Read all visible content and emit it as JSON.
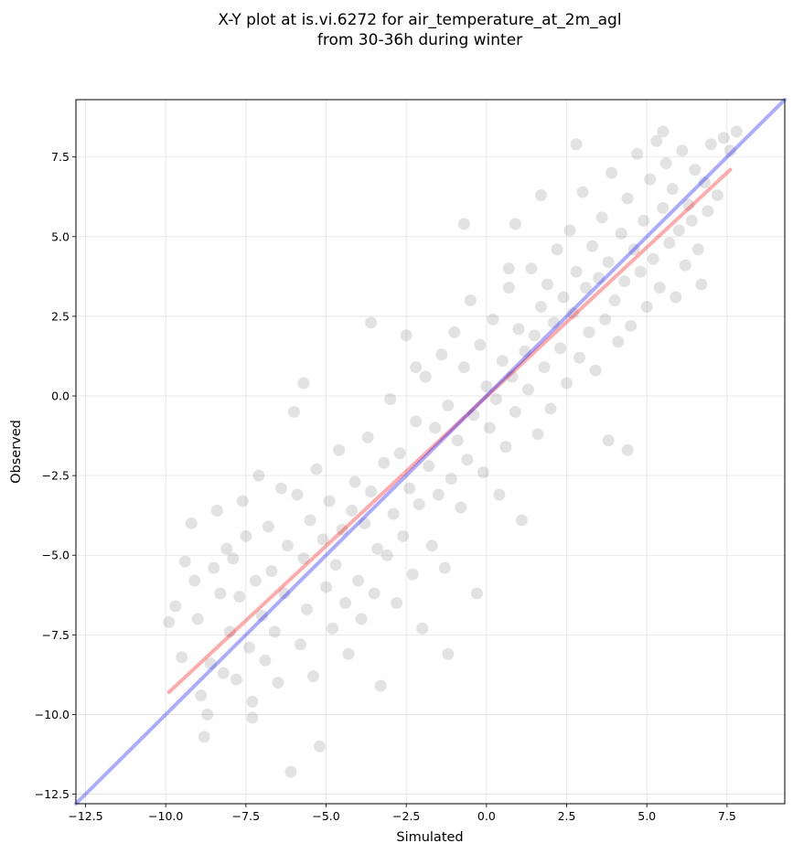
{
  "chart_data": {
    "type": "scatter",
    "title": "X-Y plot at is.vi.6272 for air_temperature_at_2m_agl",
    "subtitle": "from 30-36h during winter",
    "xlabel": "Simulated",
    "ylabel": "Observed",
    "xlim": [
      -12.8,
      9.3
    ],
    "ylim": [
      -12.8,
      9.3
    ],
    "xticks": [
      -12.5,
      -10.0,
      -7.5,
      -5.0,
      -2.5,
      0.0,
      2.5,
      5.0,
      7.5
    ],
    "yticks": [
      -12.5,
      -10.0,
      -7.5,
      -5.0,
      -2.5,
      0.0,
      2.5,
      5.0,
      7.5
    ],
    "xtick_labels": [
      "−12.5",
      "−10.0",
      "−7.5",
      "−5.0",
      "−2.5",
      "0.0",
      "2.5",
      "5.0",
      "7.5"
    ],
    "ytick_labels": [
      "−12.5",
      "−10.0",
      "−7.5",
      "−5.0",
      "−2.5",
      "0.0",
      "2.5",
      "5.0",
      "7.5"
    ],
    "grid": true,
    "legend": "none",
    "point_color": "#000000",
    "point_alpha": 0.07,
    "points": [
      [
        -9.9,
        -7.1
      ],
      [
        -9.7,
        -6.6
      ],
      [
        -9.5,
        -8.2
      ],
      [
        -9.4,
        -5.2
      ],
      [
        -9.2,
        -4.0
      ],
      [
        -9.1,
        -5.8
      ],
      [
        -9.0,
        -7.0
      ],
      [
        -8.9,
        -9.4
      ],
      [
        -8.8,
        -10.7
      ],
      [
        -8.7,
        -10.0
      ],
      [
        -8.6,
        -8.4
      ],
      [
        -8.5,
        -5.4
      ],
      [
        -8.4,
        -3.6
      ],
      [
        -8.3,
        -6.2
      ],
      [
        -8.2,
        -8.7
      ],
      [
        -8.1,
        -4.8
      ],
      [
        -8.0,
        -7.4
      ],
      [
        -7.9,
        -5.1
      ],
      [
        -7.8,
        -8.9
      ],
      [
        -7.7,
        -6.3
      ],
      [
        -7.6,
        -3.3
      ],
      [
        -7.5,
        -4.4
      ],
      [
        -7.4,
        -7.9
      ],
      [
        -7.3,
        -9.6
      ],
      [
        -7.2,
        -5.8
      ],
      [
        -7.1,
        -2.5
      ],
      [
        -7.0,
        -6.9
      ],
      [
        -6.9,
        -8.3
      ],
      [
        -6.8,
        -4.1
      ],
      [
        -6.7,
        -5.5
      ],
      [
        -6.6,
        -7.4
      ],
      [
        -6.5,
        -9.0
      ],
      [
        -6.4,
        -2.9
      ],
      [
        -6.3,
        -6.2
      ],
      [
        -6.2,
        -4.7
      ],
      [
        -6.1,
        -11.8
      ],
      [
        -6.0,
        -0.5
      ],
      [
        -5.9,
        -3.1
      ],
      [
        -5.8,
        -7.8
      ],
      [
        -5.7,
        -5.1
      ],
      [
        -5.6,
        -6.7
      ],
      [
        -5.5,
        -3.9
      ],
      [
        -5.4,
        -8.8
      ],
      [
        -5.3,
        -2.3
      ],
      [
        -5.2,
        -11.0
      ],
      [
        -5.1,
        -4.5
      ],
      [
        -5.0,
        -6.0
      ],
      [
        -4.9,
        -3.3
      ],
      [
        -4.8,
        -7.3
      ],
      [
        -4.7,
        -5.3
      ],
      [
        -4.6,
        -1.7
      ],
      [
        -4.5,
        -4.2
      ],
      [
        -4.4,
        -6.5
      ],
      [
        -4.3,
        -8.1
      ],
      [
        -4.2,
        -3.6
      ],
      [
        -4.1,
        -2.7
      ],
      [
        -4.0,
        -5.8
      ],
      [
        -3.9,
        -7.0
      ],
      [
        -3.8,
        -4.0
      ],
      [
        -3.7,
        -1.3
      ],
      [
        -3.6,
        -3.0
      ],
      [
        -3.5,
        -6.2
      ],
      [
        -3.4,
        -4.8
      ],
      [
        -3.3,
        -9.1
      ],
      [
        -3.2,
        -2.1
      ],
      [
        -3.1,
        -5.0
      ],
      [
        -3.0,
        -0.1
      ],
      [
        -2.9,
        -3.7
      ],
      [
        -2.8,
        -6.5
      ],
      [
        -2.7,
        -1.8
      ],
      [
        -2.6,
        -4.4
      ],
      [
        -2.5,
        1.9
      ],
      [
        -2.4,
        -2.9
      ],
      [
        -2.3,
        -5.6
      ],
      [
        -2.2,
        -0.8
      ],
      [
        -2.1,
        -3.4
      ],
      [
        -2.0,
        -7.3
      ],
      [
        -1.9,
        0.6
      ],
      [
        -1.8,
        -2.2
      ],
      [
        -1.7,
        -4.7
      ],
      [
        -1.6,
        -1.0
      ],
      [
        -1.5,
        -3.1
      ],
      [
        -1.4,
        1.3
      ],
      [
        -1.3,
        -5.4
      ],
      [
        -1.2,
        -0.3
      ],
      [
        -1.1,
        -2.6
      ],
      [
        -1.0,
        2.0
      ],
      [
        -0.9,
        -1.4
      ],
      [
        -0.8,
        -3.5
      ],
      [
        -0.7,
        0.9
      ],
      [
        -0.6,
        -2.0
      ],
      [
        -0.5,
        3.0
      ],
      [
        -0.4,
        -0.6
      ],
      [
        -0.3,
        -6.2
      ],
      [
        -0.2,
        1.6
      ],
      [
        -0.1,
        -2.4
      ],
      [
        0.0,
        0.3
      ],
      [
        0.1,
        -1.0
      ],
      [
        0.2,
        2.4
      ],
      [
        0.3,
        -0.1
      ],
      [
        0.4,
        -3.1
      ],
      [
        0.5,
        1.1
      ],
      [
        0.6,
        -1.6
      ],
      [
        0.7,
        3.4
      ],
      [
        0.8,
        0.6
      ],
      [
        0.9,
        -0.5
      ],
      [
        1.0,
        2.1
      ],
      [
        1.1,
        -3.9
      ],
      [
        1.2,
        1.4
      ],
      [
        1.3,
        0.2
      ],
      [
        1.4,
        4.0
      ],
      [
        1.5,
        1.9
      ],
      [
        1.6,
        -1.2
      ],
      [
        1.7,
        2.8
      ],
      [
        1.8,
        0.9
      ],
      [
        1.9,
        3.5
      ],
      [
        2.0,
        -0.4
      ],
      [
        2.1,
        2.3
      ],
      [
        2.2,
        4.6
      ],
      [
        2.3,
        1.5
      ],
      [
        2.4,
        3.1
      ],
      [
        2.5,
        0.4
      ],
      [
        2.6,
        5.2
      ],
      [
        2.7,
        2.6
      ],
      [
        2.8,
        3.9
      ],
      [
        2.9,
        1.2
      ],
      [
        3.0,
        6.4
      ],
      [
        3.1,
        3.4
      ],
      [
        3.2,
        2.0
      ],
      [
        3.3,
        4.7
      ],
      [
        3.4,
        0.8
      ],
      [
        3.5,
        3.7
      ],
      [
        3.6,
        5.6
      ],
      [
        3.7,
        2.4
      ],
      [
        3.8,
        4.2
      ],
      [
        3.9,
        7.0
      ],
      [
        4.0,
        3.0
      ],
      [
        4.1,
        1.7
      ],
      [
        4.2,
        5.1
      ],
      [
        4.3,
        3.6
      ],
      [
        4.4,
        6.2
      ],
      [
        4.5,
        2.2
      ],
      [
        4.6,
        4.6
      ],
      [
        4.7,
        7.6
      ],
      [
        4.8,
        3.9
      ],
      [
        4.9,
        5.5
      ],
      [
        5.0,
        2.8
      ],
      [
        5.1,
        6.8
      ],
      [
        5.2,
        4.3
      ],
      [
        5.3,
        8.0
      ],
      [
        5.4,
        3.4
      ],
      [
        5.5,
        5.9
      ],
      [
        5.6,
        7.3
      ],
      [
        5.7,
        4.8
      ],
      [
        5.8,
        6.5
      ],
      [
        5.9,
        3.1
      ],
      [
        6.0,
        5.2
      ],
      [
        6.1,
        7.7
      ],
      [
        6.2,
        4.1
      ],
      [
        6.3,
        6.0
      ],
      [
        6.4,
        5.5
      ],
      [
        6.5,
        7.1
      ],
      [
        6.6,
        4.6
      ],
      [
        6.7,
        3.5
      ],
      [
        6.8,
        6.7
      ],
      [
        6.9,
        5.8
      ],
      [
        7.0,
        7.9
      ],
      [
        7.2,
        6.3
      ],
      [
        7.4,
        8.1
      ],
      [
        7.6,
        7.7
      ],
      [
        -0.7,
        5.4
      ],
      [
        0.9,
        5.4
      ],
      [
        -5.7,
        0.4
      ],
      [
        -1.2,
        -8.1
      ],
      [
        2.8,
        7.9
      ],
      [
        7.8,
        8.3
      ],
      [
        3.8,
        -1.4
      ],
      [
        4.4,
        -1.7
      ],
      [
        1.7,
        6.3
      ],
      [
        -3.6,
        2.3
      ],
      [
        0.7,
        4.0
      ],
      [
        -7.3,
        -10.1
      ],
      [
        -2.2,
        0.9
      ],
      [
        5.5,
        8.3
      ]
    ],
    "series": [
      {
        "name": "",
        "type": "line",
        "color": "#ff0000",
        "x": [
          -9.9,
          7.6
        ],
        "y": [
          -9.3,
          7.1
        ]
      },
      {
        "name": "",
        "type": "line",
        "color": "#0000ff",
        "x": [
          -12.8,
          9.3
        ],
        "y": [
          -12.8,
          9.3
        ]
      }
    ]
  }
}
